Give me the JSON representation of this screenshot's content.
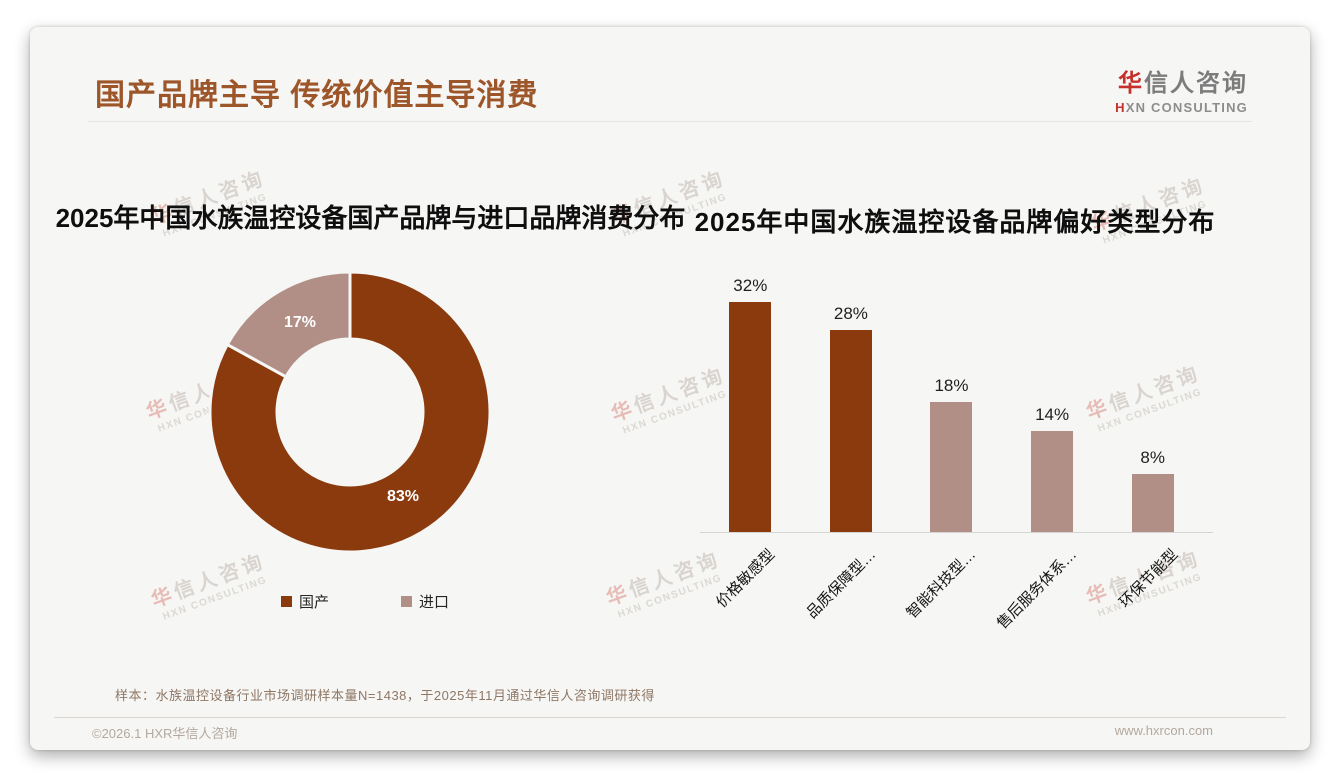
{
  "slide": {
    "title": "国产品牌主导 传统价值主导消费",
    "logo": {
      "name_first": "华",
      "name_rest": "信人咨询",
      "subtitle_first": "H",
      "subtitle_rest": "XN CONSULTING"
    },
    "watermark": {
      "line1_first": "华",
      "line1_rest": "信人咨询",
      "line2": "HXN CONSULTING"
    },
    "note": "样本：水族温控设备行业市场调研样本量N=1438，于2025年11月通过华信人咨询调研获得",
    "footer": {
      "copyright": "©2026.1 HXR华信人咨询",
      "website": "www.hxrcon.com"
    }
  },
  "colors": {
    "brand_brown": "#8B3A0E",
    "brand_mauve": "#B18F87",
    "title_brown": "#9D5629",
    "logo_red": "#C5302C"
  },
  "chart_data": [
    {
      "type": "pie",
      "subtype": "donut",
      "title": "2025年中国水族温控设备国产品牌与进口品牌消费分布",
      "labels": [
        "国产",
        "进口"
      ],
      "values": [
        83,
        17
      ],
      "data_labels": [
        "83%",
        "17%"
      ],
      "colors": [
        "#8B3A0E",
        "#B18F87"
      ],
      "start_angle_deg": 0,
      "direction": "clockwise",
      "legend_position": "bottom"
    },
    {
      "type": "bar",
      "title": "2025年中国水族温控设备品牌偏好类型分布",
      "categories": [
        "价格敏感型",
        "品质保障型…",
        "智能科技型…",
        "售后服务体系…",
        "环保节能型"
      ],
      "values": [
        32,
        28,
        18,
        14,
        8
      ],
      "data_labels": [
        "32%",
        "28%",
        "18%",
        "14%",
        "8%"
      ],
      "bar_colors": [
        "#8B3A0E",
        "#8B3A0E",
        "#B18F87",
        "#B18F87",
        "#B18F87"
      ],
      "ylim": [
        0,
        35
      ],
      "grid": false,
      "value_axis_visible": false,
      "legend_position": "none"
    }
  ]
}
